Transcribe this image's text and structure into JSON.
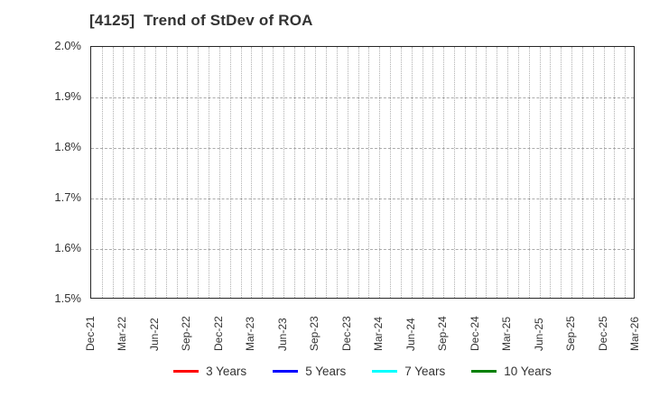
{
  "chart_data": {
    "type": "line",
    "title": "[4125]  Trend of StDev of ROA",
    "x_axis": {
      "tick_labels": [
        "Dec-21",
        "Mar-22",
        "Jun-22",
        "Sep-22",
        "Dec-22",
        "Mar-23",
        "Jun-23",
        "Sep-23",
        "Dec-23",
        "Mar-24",
        "Jun-24",
        "Sep-24",
        "Dec-24",
        "Mar-25",
        "Jun-25",
        "Sep-25",
        "Dec-25",
        "Mar-26"
      ],
      "tick_interval_months": 3,
      "total_months": 51,
      "minor_gridline_interval_months": 1
    },
    "y_axis": {
      "tick_labels_top_to_bottom": [
        "2.0%",
        "1.9%",
        "1.8%",
        "1.7%",
        "1.6%",
        "1.5%"
      ],
      "ylim": [
        1.5,
        2.0
      ],
      "unit": "%"
    },
    "grid": "on",
    "legend_position": "bottom-center",
    "series": [
      {
        "name": "3 Years",
        "color": "#ff0000",
        "values": []
      },
      {
        "name": "5 Years",
        "color": "#0000ff",
        "values": []
      },
      {
        "name": "7 Years",
        "color": "#00ffff",
        "values": []
      },
      {
        "name": "10 Years",
        "color": "#008000",
        "values": []
      }
    ],
    "visible_data_points": "none — plot area is empty within the 1.5%–2.0% range"
  }
}
